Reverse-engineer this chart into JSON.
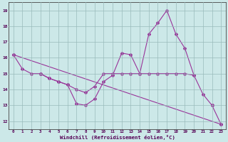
{
  "xlabel": "Windchill (Refroidissement éolien,°C)",
  "x": [
    0,
    1,
    2,
    3,
    4,
    5,
    6,
    7,
    8,
    9,
    10,
    11,
    12,
    13,
    14,
    15,
    16,
    17,
    18,
    19,
    20,
    21,
    22,
    23
  ],
  "line1": [
    16.2,
    15.3,
    15.0,
    15.0,
    14.7,
    14.5,
    14.3,
    13.1,
    13.0,
    13.4,
    14.5,
    14.9,
    16.3,
    16.2,
    15.0,
    17.5,
    18.2,
    19.0,
    17.5,
    16.6,
    14.9,
    13.7,
    13.0,
    null
  ],
  "line2": [
    null,
    null,
    null,
    15.0,
    14.7,
    14.5,
    14.3,
    14.0,
    13.8,
    14.2,
    15.0,
    15.0,
    15.0,
    15.0,
    15.0,
    15.0,
    15.0,
    15.0,
    15.0,
    15.0,
    14.9,
    null,
    null,
    null
  ],
  "line3": [
    16.2,
    null,
    null,
    null,
    null,
    null,
    null,
    null,
    null,
    null,
    null,
    null,
    null,
    null,
    null,
    null,
    null,
    null,
    null,
    null,
    null,
    null,
    13.0,
    11.8
  ],
  "line4": [
    null,
    null,
    null,
    15.0,
    null,
    null,
    null,
    null,
    null,
    null,
    null,
    null,
    null,
    null,
    null,
    null,
    null,
    null,
    null,
    null,
    null,
    null,
    13.0,
    11.8
  ],
  "ylim": [
    11.5,
    19.5
  ],
  "yticks": [
    12,
    13,
    14,
    15,
    16,
    17,
    18,
    19
  ],
  "bg_color": "#cce8e8",
  "line_color": "#993399",
  "grid_color": "#99bbbb",
  "axis_color": "#444444",
  "label_color": "#550055"
}
